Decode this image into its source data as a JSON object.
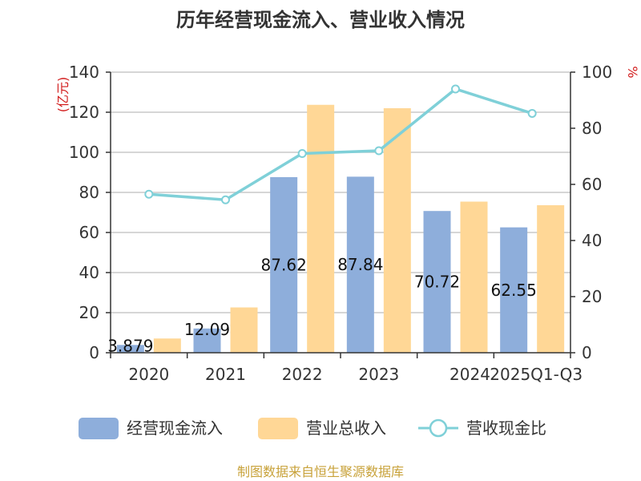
{
  "chart_data": {
    "type": "bar",
    "title": "历年经营现金流入、营业收入情况",
    "categories": [
      "2020",
      "2021",
      "2022",
      "2023",
      "2024",
      "2025Q1-Q3"
    ],
    "series": [
      {
        "name": "经营现金流入",
        "type": "bar",
        "axis": "left",
        "color": "#8eaedb",
        "values": [
          3.879,
          12.093,
          87.621,
          87.845,
          70.723,
          62.553
        ],
        "labels": [
          "3.879",
          "12.09",
          "87.62",
          "87.84",
          "70.72",
          "62.55"
        ]
      },
      {
        "name": "营业总收入",
        "type": "bar",
        "axis": "left",
        "color": "#ffd796",
        "values": [
          7.1,
          22.6,
          123.7,
          122.0,
          75.4,
          73.6
        ]
      },
      {
        "name": "营收现金比",
        "type": "line",
        "axis": "right",
        "color": "#7fd0d8",
        "values": [
          56.5,
          54.5,
          71.0,
          72.0,
          94.0,
          85.3
        ]
      }
    ],
    "y_left": {
      "unit": "(亿元)",
      "ylim": [
        0,
        140
      ],
      "ticks": [
        "0",
        "20",
        "40",
        "60",
        "80",
        "100",
        "120",
        "140"
      ]
    },
    "y_right": {
      "unit": "%",
      "ylim": [
        0,
        100
      ],
      "ticks": [
        "0",
        "20",
        "40",
        "60",
        "80",
        "100"
      ]
    },
    "grid": true,
    "legend_position": "bottom"
  },
  "source": "制图数据来自恒生聚源数据库"
}
